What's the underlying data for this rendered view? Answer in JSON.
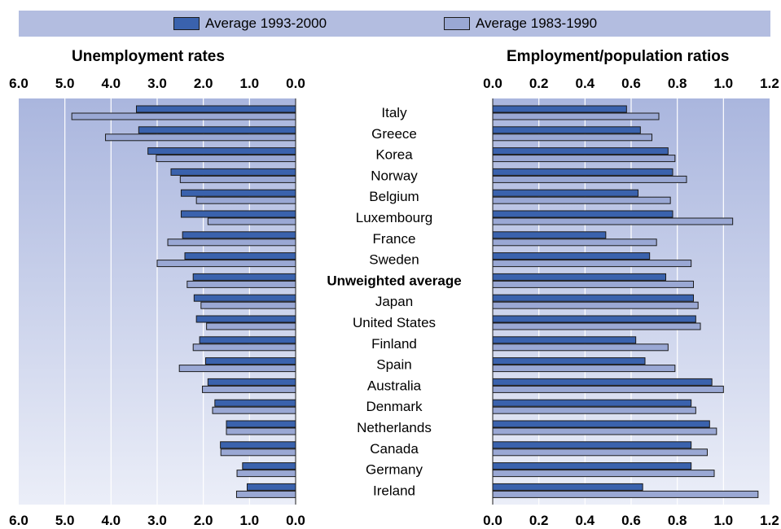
{
  "legend": {
    "items": [
      {
        "label": "Average 1993-2000",
        "color": "#3a62ad"
      },
      {
        "label": "Average 1983-1990",
        "color": "#9aa8d4"
      }
    ]
  },
  "chart_data": [
    {
      "type": "bar",
      "orientation": "horizontal",
      "title": "Unemployment rates",
      "x_reversed": true,
      "xlim": [
        0,
        6
      ],
      "ticks": [
        "6.0",
        "5.0",
        "4.0",
        "3.0",
        "2.0",
        "1.0",
        "0.0"
      ],
      "grid": true,
      "categories": [
        "Italy",
        "Greece",
        "Korea",
        "Norway",
        "Belgium",
        "Luxembourg",
        "France",
        "Sweden",
        "Unweighted average",
        "Japan",
        "United States",
        "Finland",
        "Spain",
        "Australia",
        "Denmark",
        "Netherlands",
        "Canada",
        "Germany",
        "Ireland"
      ],
      "series": [
        {
          "name": "Average 1993-2000",
          "values": [
            3.45,
            3.4,
            3.2,
            2.7,
            2.48,
            2.48,
            2.45,
            2.4,
            2.22,
            2.2,
            2.15,
            2.08,
            1.95,
            1.9,
            1.75,
            1.5,
            1.63,
            1.15,
            1.05
          ]
        },
        {
          "name": "Average 1983-1990",
          "values": [
            4.85,
            4.12,
            3.02,
            2.5,
            2.15,
            1.9,
            2.77,
            3.0,
            2.35,
            2.05,
            1.93,
            2.22,
            2.52,
            2.02,
            1.8,
            1.5,
            1.62,
            1.27,
            1.28
          ]
        }
      ]
    },
    {
      "type": "bar",
      "orientation": "horizontal",
      "title": "Employment/population ratios",
      "xlim": [
        0,
        1.2
      ],
      "ticks": [
        "0.0",
        "0.2",
        "0.4",
        "0.6",
        "0.8",
        "1.0",
        "1.2"
      ],
      "grid": true,
      "categories": [
        "Italy",
        "Greece",
        "Korea",
        "Norway",
        "Belgium",
        "Luxembourg",
        "France",
        "Sweden",
        "Unweighted average",
        "Japan",
        "United States",
        "Finland",
        "Spain",
        "Australia",
        "Denmark",
        "Netherlands",
        "Canada",
        "Germany",
        "Ireland"
      ],
      "series": [
        {
          "name": "Average 1993-2000",
          "values": [
            0.58,
            0.64,
            0.76,
            0.78,
            0.63,
            0.78,
            0.49,
            0.68,
            0.75,
            0.87,
            0.88,
            0.62,
            0.66,
            0.95,
            0.86,
            0.94,
            0.86,
            0.86,
            0.65
          ]
        },
        {
          "name": "Average 1983-1990",
          "values": [
            0.72,
            0.69,
            0.79,
            0.84,
            0.77,
            1.04,
            0.71,
            0.86,
            0.87,
            0.89,
            0.9,
            0.76,
            0.79,
            1.0,
            0.88,
            0.97,
            0.93,
            0.96,
            1.15
          ]
        }
      ]
    }
  ]
}
